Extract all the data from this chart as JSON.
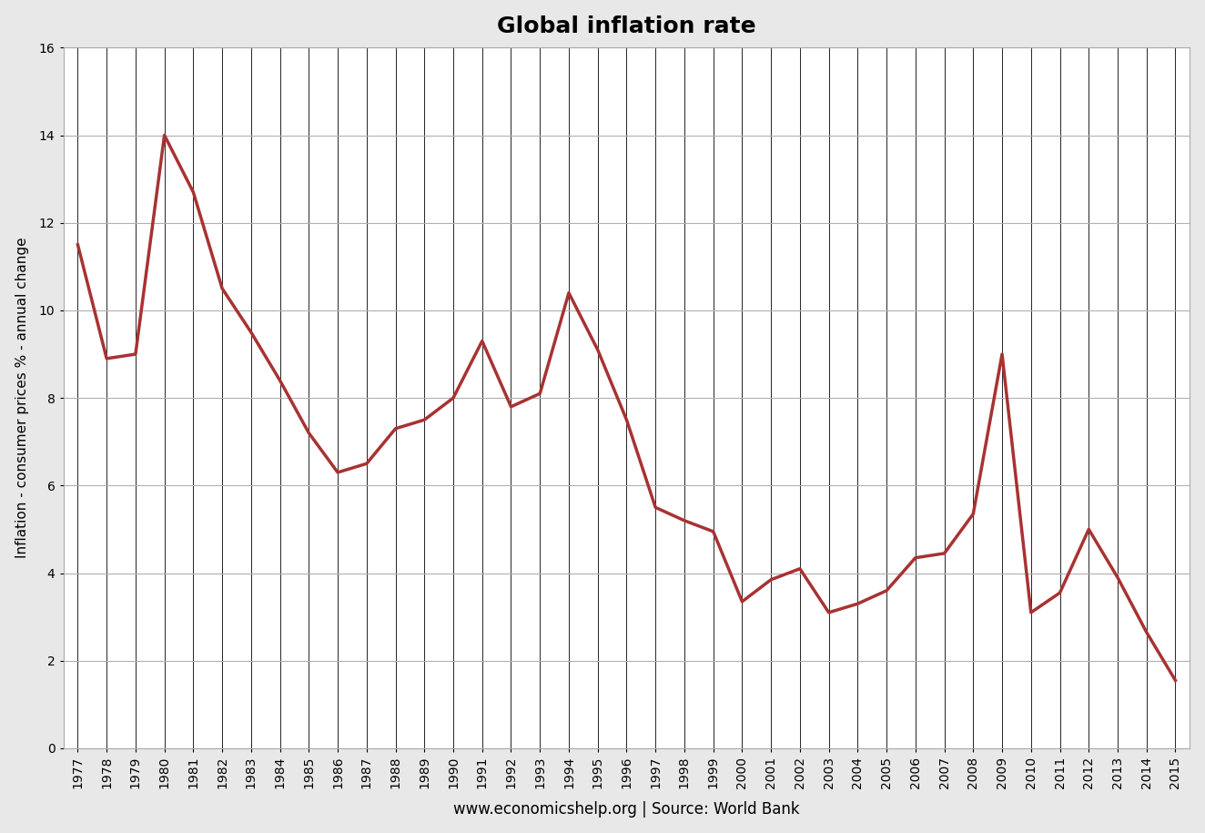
{
  "title": "Global inflation rate",
  "xlabel": "www.economicshelp.org | Source: World Bank",
  "ylabel": "Inflation - consumer prices % - annual change",
  "years": [
    1977,
    1978,
    1979,
    1980,
    1981,
    1982,
    1983,
    1984,
    1985,
    1986,
    1987,
    1988,
    1989,
    1990,
    1991,
    1992,
    1993,
    1994,
    1995,
    1996,
    1997,
    1998,
    1999,
    2000,
    2001,
    2002,
    2003,
    2004,
    2005,
    2006,
    2007,
    2008,
    2009,
    2010,
    2011,
    2012,
    2013,
    2014,
    2015
  ],
  "values": [
    11.5,
    8.9,
    9.0,
    14.0,
    12.7,
    10.5,
    9.5,
    8.4,
    7.2,
    6.3,
    6.5,
    7.3,
    7.5,
    8.0,
    9.3,
    7.8,
    8.1,
    10.4,
    9.1,
    7.5,
    5.5,
    5.2,
    4.95,
    3.35,
    3.85,
    4.1,
    3.1,
    3.3,
    3.6,
    4.35,
    4.45,
    5.35,
    9.0,
    3.1,
    3.55,
    5.0,
    3.9,
    2.65,
    1.55
  ],
  "line_color": "#a83232",
  "line_width": 2.5,
  "background_color": "#ffffff",
  "outer_bg": "#e8e8e8",
  "grid_color": "#c0c0c0",
  "vgrid_color": "#000000",
  "vgrid_lw": 0.6,
  "hgrid_color": "#b0b0b0",
  "hgrid_lw": 0.8,
  "ylim": [
    0,
    16
  ],
  "yticks": [
    0,
    2,
    4,
    6,
    8,
    10,
    12,
    14,
    16
  ],
  "title_fontsize": 18,
  "axis_label_fontsize": 11,
  "tick_fontsize": 10,
  "xlabel_fontsize": 12,
  "spine_color": "#aaaaaa"
}
